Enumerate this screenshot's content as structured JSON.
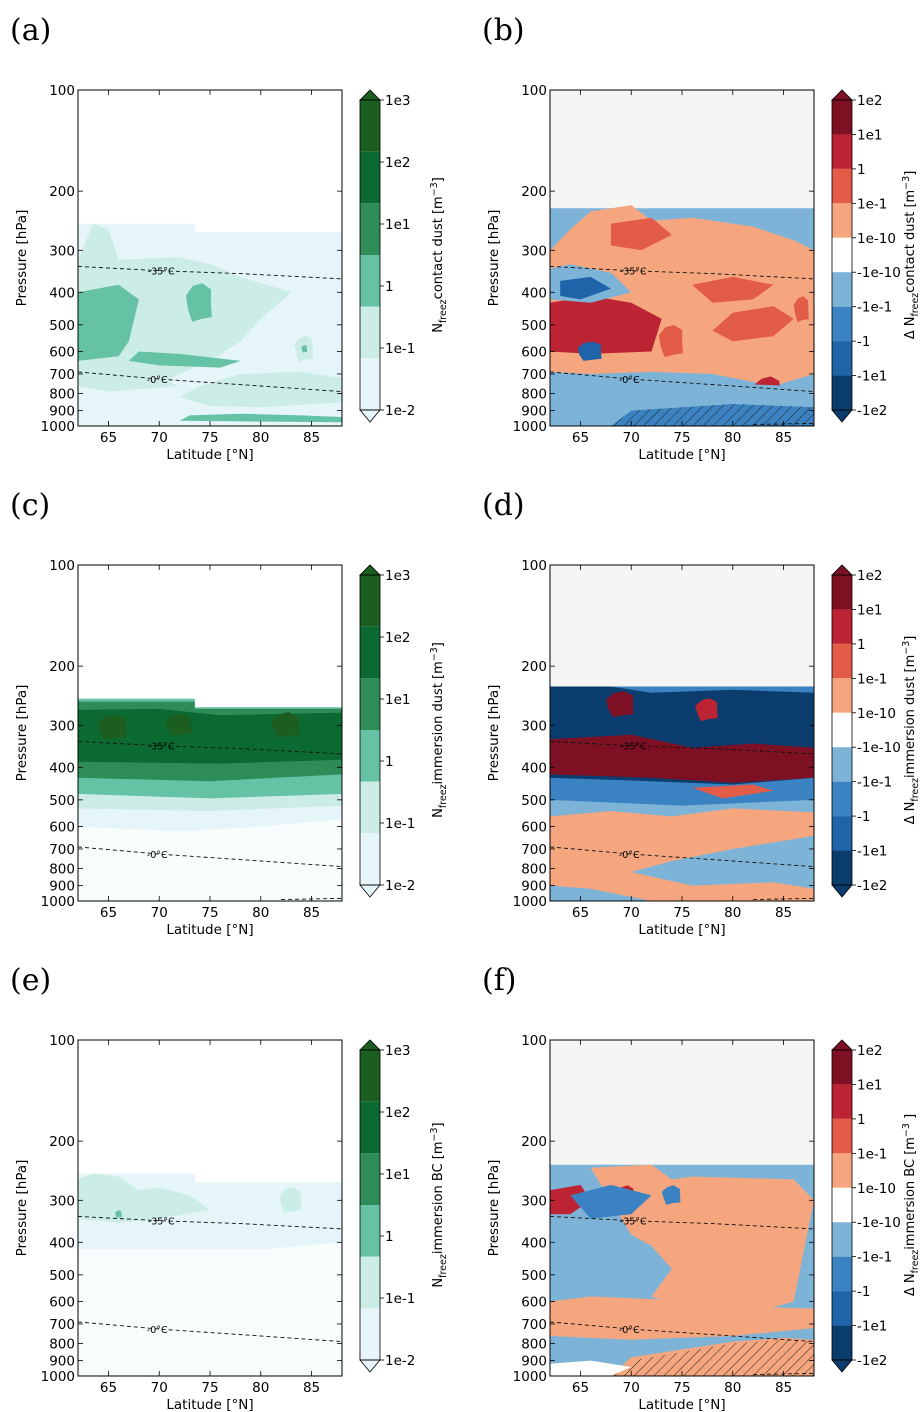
{
  "chart_data": [
    {
      "panel": "(a)",
      "type": "heatmap",
      "variable": "contact dust",
      "colorbar_label": {
        "prefix": "",
        "sub": "freez",
        "main": "contact dust [m",
        "sup": "−3",
        "end": "]"
      },
      "xlabel": "Latitude [°N]",
      "ylabel": "Pressure [hPa]",
      "xlim": [
        62,
        88
      ],
      "ylim": [
        1000,
        100
      ],
      "y_scale": "log",
      "x_ticks": [
        "65",
        "70",
        "75",
        "80",
        "85"
      ],
      "y_ticks": [
        "100",
        "200",
        "300",
        "400",
        "500",
        "600",
        "700",
        "800",
        "900",
        "1000"
      ],
      "colorbar_ticks": [
        "1e3",
        "1e2",
        "1e1",
        "1",
        "1e-1",
        "1e-2"
      ],
      "isotherms": [
        "-35°C",
        "-0°C"
      ]
    },
    {
      "panel": "(b)",
      "type": "heatmap",
      "variable": "Δ contact dust",
      "colorbar_label": {
        "prefix": "Δ N",
        "sub": "freez",
        "main": "contact dust [m",
        "sup": "−3",
        "end": "]"
      },
      "xlabel": "Latitude [°N]",
      "ylabel": "Pressure [hPa]",
      "xlim": [
        62,
        88
      ],
      "ylim": [
        1000,
        100
      ],
      "y_scale": "log",
      "x_ticks": [
        "65",
        "70",
        "75",
        "80",
        "85"
      ],
      "y_ticks": [
        "100",
        "200",
        "300",
        "400",
        "500",
        "600",
        "700",
        "800",
        "900",
        "1000"
      ],
      "colorbar_ticks": [
        "1e2",
        "1e1",
        "1",
        "1e-1",
        "1e-10",
        "-1e-10",
        "-1e-1",
        "-1",
        "-1e1",
        "-1e2"
      ],
      "isotherms": [
        "-35°C",
        "-0°C"
      ]
    },
    {
      "panel": "(c)",
      "type": "heatmap",
      "variable": "immersion dust",
      "colorbar_label": {
        "prefix": "",
        "sub": "freez",
        "main": "immersion dust [m",
        "sup": "−3",
        "end": "]"
      },
      "xlabel": "Latitude [°N]",
      "ylabel": "Pressure [hPa]",
      "xlim": [
        62,
        88
      ],
      "ylim": [
        1000,
        100
      ],
      "y_scale": "log",
      "x_ticks": [
        "65",
        "70",
        "75",
        "80",
        "85"
      ],
      "y_ticks": [
        "100",
        "200",
        "300",
        "400",
        "500",
        "600",
        "700",
        "800",
        "900",
        "1000"
      ],
      "colorbar_ticks": [
        "1e3",
        "1e2",
        "1e1",
        "1",
        "1e-1",
        "1e-2"
      ],
      "isotherms": [
        "-35°C",
        "-0°C"
      ]
    },
    {
      "panel": "(d)",
      "type": "heatmap",
      "variable": "Δ immersion dust",
      "colorbar_label": {
        "prefix": "Δ N",
        "sub": "freez",
        "main": "immersion dust [m",
        "sup": "−3",
        "end": "]"
      },
      "xlabel": "Latitude [°N]",
      "ylabel": "Pressure [hPa]",
      "xlim": [
        62,
        88
      ],
      "ylim": [
        1000,
        100
      ],
      "y_scale": "log",
      "x_ticks": [
        "65",
        "70",
        "75",
        "80",
        "85"
      ],
      "y_ticks": [
        "100",
        "200",
        "300",
        "400",
        "500",
        "600",
        "700",
        "800",
        "900",
        "1000"
      ],
      "colorbar_ticks": [
        "1e2",
        "1e1",
        "1",
        "1e-1",
        "1e-10",
        "-1e-10",
        "-1e-1",
        "-1",
        "-1e1",
        "-1e2"
      ],
      "isotherms": [
        "-35°C",
        "-0°C"
      ]
    },
    {
      "panel": "(e)",
      "type": "heatmap",
      "variable": "immersion BC",
      "colorbar_label": {
        "prefix": "",
        "sub": "freez",
        "main": "immersion BC [m",
        "sup": "−3",
        "end": "]"
      },
      "xlabel": "Latitude [°N]",
      "ylabel": "Pressure [hPa]",
      "xlim": [
        62,
        88
      ],
      "ylim": [
        1000,
        100
      ],
      "y_scale": "log",
      "x_ticks": [
        "65",
        "70",
        "75",
        "80",
        "85"
      ],
      "y_ticks": [
        "100",
        "200",
        "300",
        "400",
        "500",
        "600",
        "700",
        "800",
        "900",
        "1000"
      ],
      "colorbar_ticks": [
        "1e3",
        "1e2",
        "1e1",
        "1",
        "1e-1",
        "1e-2"
      ],
      "isotherms": [
        "-35°C",
        "-0°C"
      ]
    },
    {
      "panel": "(f)",
      "type": "heatmap",
      "variable": "Δ immersion BC",
      "colorbar_label": {
        "prefix": "Δ N",
        "sub": "freez",
        "main": "immersion BC [m",
        "sup": "−3",
        "end": " ]"
      },
      "xlabel": "Latitude [°N]",
      "ylabel": "Pressure [hPa]",
      "xlim": [
        62,
        88
      ],
      "ylim": [
        1000,
        100
      ],
      "y_scale": "log",
      "x_ticks": [
        "65",
        "70",
        "75",
        "80",
        "85"
      ],
      "y_ticks": [
        "100",
        "200",
        "300",
        "400",
        "500",
        "600",
        "700",
        "800",
        "900",
        "1000"
      ],
      "colorbar_ticks": [
        "1e2",
        "1e1",
        "1",
        "1e-1",
        "1e-10",
        "-1e-10",
        "-1e-1",
        "-1",
        "-1e1",
        "-1e2"
      ],
      "isotherms": [
        "-35°C",
        "-0°C"
      ]
    }
  ],
  "colors": {
    "green_scale": [
      "#f7fcfd",
      "#e5f5f9",
      "#ccece6",
      "#66c2a4",
      "#2e8c58",
      "#0b6a32",
      "#1b5e20"
    ],
    "div_scale": [
      "#0b3c6e",
      "#1f63a8",
      "#3b82c2",
      "#7eb3d8",
      "#ffffff",
      "#f6a67e",
      "#e25c47",
      "#bd2433",
      "#7e1023"
    ],
    "no_data": "#f5f5f3"
  }
}
